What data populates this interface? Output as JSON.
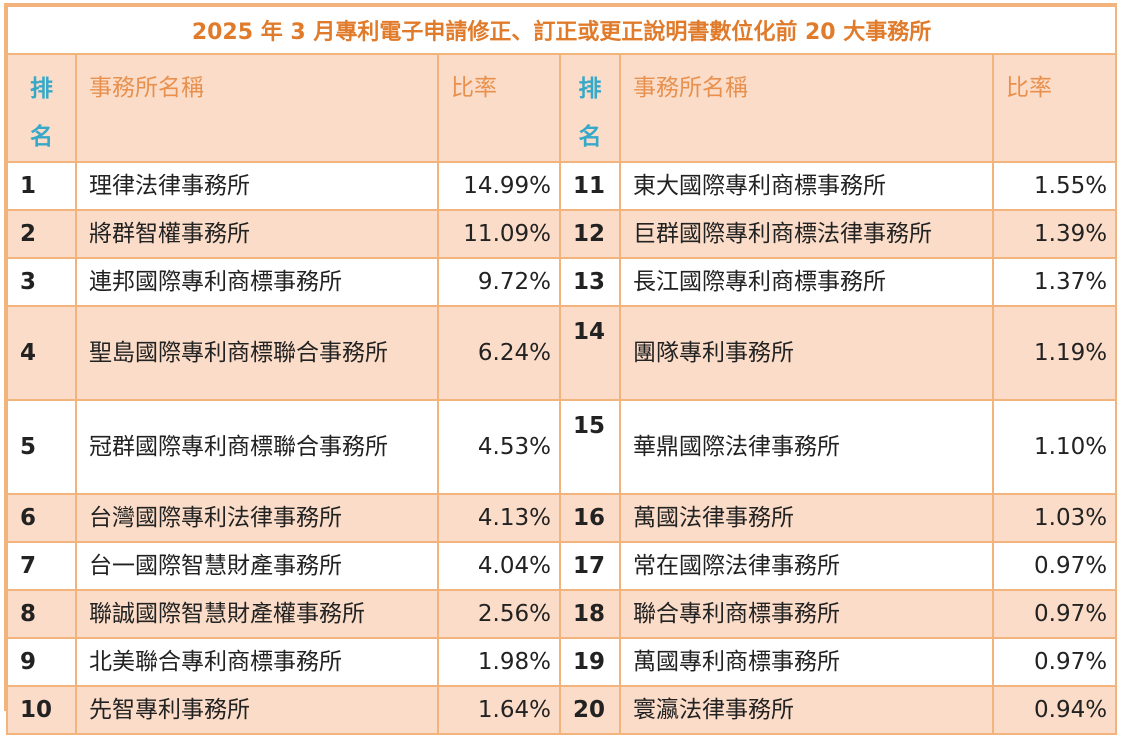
{
  "title": "2025 年 3 月專利電子申請修正、訂正或更正說明書數位化前 20 大事務所",
  "headers": {
    "rank_top": "排",
    "rank_bottom": "名",
    "name": "事務所名稱",
    "ratio": "比率"
  },
  "rows": [
    {
      "left": {
        "rank": "1",
        "name": "理律法律事務所",
        "ratio": "14.99%"
      },
      "right": {
        "rank": "11",
        "name": "東大國際專利商標事務所",
        "ratio": "1.55%"
      }
    },
    {
      "left": {
        "rank": "2",
        "name": "將群智權事務所",
        "ratio": "11.09%"
      },
      "right": {
        "rank": "12",
        "name": "巨群國際專利商標法律事務所",
        "ratio": "1.39%"
      }
    },
    {
      "left": {
        "rank": "3",
        "name": "連邦國際專利商標事務所",
        "ratio": "9.72%"
      },
      "right": {
        "rank": "13",
        "name": "長江國際專利商標事務所",
        "ratio": "1.37%"
      }
    },
    {
      "left": {
        "rank": "4",
        "name": "聖島國際專利商標聯合事務所",
        "ratio": "6.24%"
      },
      "right": {
        "rank": "14",
        "name": "團隊專利事務所",
        "ratio": "1.19%"
      }
    },
    {
      "left": {
        "rank": "5",
        "name": "冠群國際專利商標聯合事務所",
        "ratio": "4.53%"
      },
      "right": {
        "rank": "15",
        "name": "華鼎國際法律事務所",
        "ratio": "1.10%"
      }
    },
    {
      "left": {
        "rank": "6",
        "name": "台灣國際專利法律事務所",
        "ratio": "4.13%"
      },
      "right": {
        "rank": "16",
        "name": "萬國法律事務所",
        "ratio": "1.03%"
      }
    },
    {
      "left": {
        "rank": "7",
        "name": "台一國際智慧財產事務所",
        "ratio": "4.04%"
      },
      "right": {
        "rank": "17",
        "name": "常在國際法律事務所",
        "ratio": "0.97%"
      }
    },
    {
      "left": {
        "rank": "8",
        "name": "聯誠國際智慧財產權事務所",
        "ratio": "2.56%"
      },
      "right": {
        "rank": "18",
        "name": "聯合專利商標事務所",
        "ratio": "0.97%"
      }
    },
    {
      "left": {
        "rank": "9",
        "name": "北美聯合專利商標事務所",
        "ratio": "1.98%"
      },
      "right": {
        "rank": "19",
        "name": "萬國專利商標事務所",
        "ratio": "0.97%"
      }
    },
    {
      "left": {
        "rank": "10",
        "name": "先智專利事務所",
        "ratio": "1.64%"
      },
      "right": {
        "rank": "20",
        "name": "寰瀛法律事務所",
        "ratio": "0.94%"
      }
    }
  ],
  "colors": {
    "border": "#f2b37c",
    "title": "#e07b2b",
    "header_text": "#e8914e",
    "rank_text": "#36a8c8",
    "shaded_row": "#fbdcc8"
  }
}
